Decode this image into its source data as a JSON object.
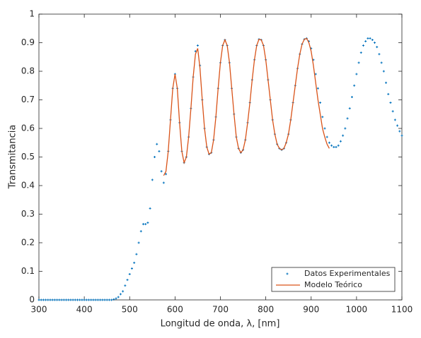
{
  "chart_data": {
    "type": "line",
    "xlabel": "Longitud de onda, λ, [nm]",
    "ylabel": "Transmitancia",
    "xlim": [
      300,
      1100
    ],
    "xticks": [
      300,
      400,
      500,
      600,
      700,
      800,
      900,
      1000,
      1100
    ],
    "ylim": [
      0,
      1
    ],
    "yticks": [
      0,
      0.1,
      0.2,
      0.3,
      0.4,
      0.5,
      0.6,
      0.7,
      0.8,
      0.9,
      1
    ],
    "legend": "southeast",
    "series": [
      {
        "name": "Datos Experimentales",
        "color": "#0072bd",
        "mode": "markers",
        "x": [
          300,
          305,
          310,
          315,
          320,
          325,
          330,
          335,
          340,
          345,
          350,
          355,
          360,
          365,
          370,
          375,
          380,
          385,
          390,
          395,
          400,
          405,
          410,
          415,
          420,
          425,
          430,
          435,
          440,
          445,
          450,
          455,
          460,
          465,
          470,
          475,
          480,
          485,
          490,
          495,
          500,
          505,
          510,
          515,
          520,
          525,
          530,
          535,
          540,
          545,
          550,
          555,
          560,
          565,
          570,
          575,
          580,
          585,
          590,
          595,
          600,
          605,
          610,
          615,
          620,
          625,
          630,
          635,
          640,
          645,
          650,
          655,
          660,
          665,
          670,
          675,
          680,
          685,
          690,
          695,
          700,
          705,
          710,
          715,
          720,
          725,
          730,
          735,
          740,
          745,
          750,
          755,
          760,
          765,
          770,
          775,
          780,
          785,
          790,
          795,
          800,
          805,
          810,
          815,
          820,
          825,
          830,
          835,
          840,
          845,
          850,
          855,
          860,
          865,
          870,
          875,
          880,
          885,
          890,
          895,
          900,
          905,
          910,
          915,
          920,
          925,
          930,
          935,
          940,
          945,
          950,
          955,
          960,
          965,
          970,
          975,
          980,
          985,
          990,
          995,
          1000,
          1005,
          1010,
          1015,
          1020,
          1025,
          1030,
          1035,
          1040,
          1045,
          1050,
          1055,
          1060,
          1065,
          1070,
          1075,
          1080,
          1085,
          1090,
          1095,
          1100
        ],
        "values": [
          0,
          0,
          0,
          0,
          0,
          0,
          0,
          0,
          0,
          0,
          0,
          0,
          0,
          0,
          0,
          0,
          0,
          0,
          0,
          0,
          0,
          0,
          0,
          0,
          0,
          0,
          0,
          0,
          0,
          0,
          0,
          0,
          0,
          0.002,
          0.005,
          0.01,
          0.02,
          0.03,
          0.05,
          0.07,
          0.09,
          0.11,
          0.13,
          0.16,
          0.2,
          0.24,
          0.265,
          0.265,
          0.27,
          0.32,
          0.42,
          0.5,
          0.545,
          0.52,
          0.45,
          0.41,
          0.44,
          0.52,
          0.63,
          0.74,
          0.79,
          0.74,
          0.62,
          0.52,
          0.48,
          0.5,
          0.57,
          0.67,
          0.78,
          0.87,
          0.89,
          0.82,
          0.7,
          0.6,
          0.535,
          0.51,
          0.515,
          0.56,
          0.64,
          0.74,
          0.83,
          0.89,
          0.91,
          0.89,
          0.83,
          0.74,
          0.65,
          0.57,
          0.53,
          0.515,
          0.525,
          0.56,
          0.62,
          0.69,
          0.77,
          0.84,
          0.89,
          0.912,
          0.91,
          0.89,
          0.84,
          0.77,
          0.7,
          0.63,
          0.58,
          0.545,
          0.53,
          0.525,
          0.53,
          0.55,
          0.58,
          0.63,
          0.69,
          0.75,
          0.81,
          0.86,
          0.895,
          0.912,
          0.915,
          0.905,
          0.88,
          0.84,
          0.79,
          0.74,
          0.69,
          0.64,
          0.6,
          0.57,
          0.55,
          0.54,
          0.535,
          0.535,
          0.54,
          0.555,
          0.575,
          0.6,
          0.635,
          0.67,
          0.71,
          0.75,
          0.79,
          0.83,
          0.865,
          0.89,
          0.905,
          0.915,
          0.915,
          0.91,
          0.9,
          0.885,
          0.86,
          0.83,
          0.8,
          0.76,
          0.72,
          0.69,
          0.66,
          0.63,
          0.61,
          0.59,
          0.575
        ]
      },
      {
        "name": "Modelo Teórico",
        "color": "#d95319",
        "mode": "line",
        "x": [
          575,
          580,
          585,
          590,
          595,
          600,
          605,
          610,
          615,
          620,
          625,
          630,
          635,
          640,
          645,
          650,
          655,
          660,
          665,
          670,
          675,
          680,
          685,
          690,
          695,
          700,
          705,
          710,
          715,
          720,
          725,
          730,
          735,
          740,
          745,
          750,
          755,
          760,
          765,
          770,
          775,
          780,
          785,
          790,
          795,
          800,
          805,
          810,
          815,
          820,
          825,
          830,
          835,
          840,
          845,
          850,
          855,
          860,
          865,
          870,
          875,
          880,
          885,
          890,
          895,
          900,
          905,
          910,
          915,
          920,
          925,
          930,
          935,
          940
        ],
        "values": [
          0.435,
          0.45,
          0.52,
          0.63,
          0.74,
          0.79,
          0.74,
          0.62,
          0.52,
          0.48,
          0.5,
          0.57,
          0.67,
          0.78,
          0.86,
          0.88,
          0.81,
          0.7,
          0.6,
          0.535,
          0.51,
          0.515,
          0.56,
          0.64,
          0.74,
          0.83,
          0.89,
          0.91,
          0.89,
          0.83,
          0.74,
          0.65,
          0.57,
          0.53,
          0.515,
          0.525,
          0.56,
          0.62,
          0.69,
          0.77,
          0.84,
          0.89,
          0.912,
          0.91,
          0.89,
          0.84,
          0.77,
          0.7,
          0.63,
          0.58,
          0.545,
          0.53,
          0.525,
          0.53,
          0.55,
          0.58,
          0.63,
          0.69,
          0.75,
          0.81,
          0.86,
          0.895,
          0.912,
          0.915,
          0.9,
          0.87,
          0.82,
          0.76,
          0.7,
          0.65,
          0.6,
          0.57,
          0.545,
          0.53
        ]
      }
    ]
  }
}
